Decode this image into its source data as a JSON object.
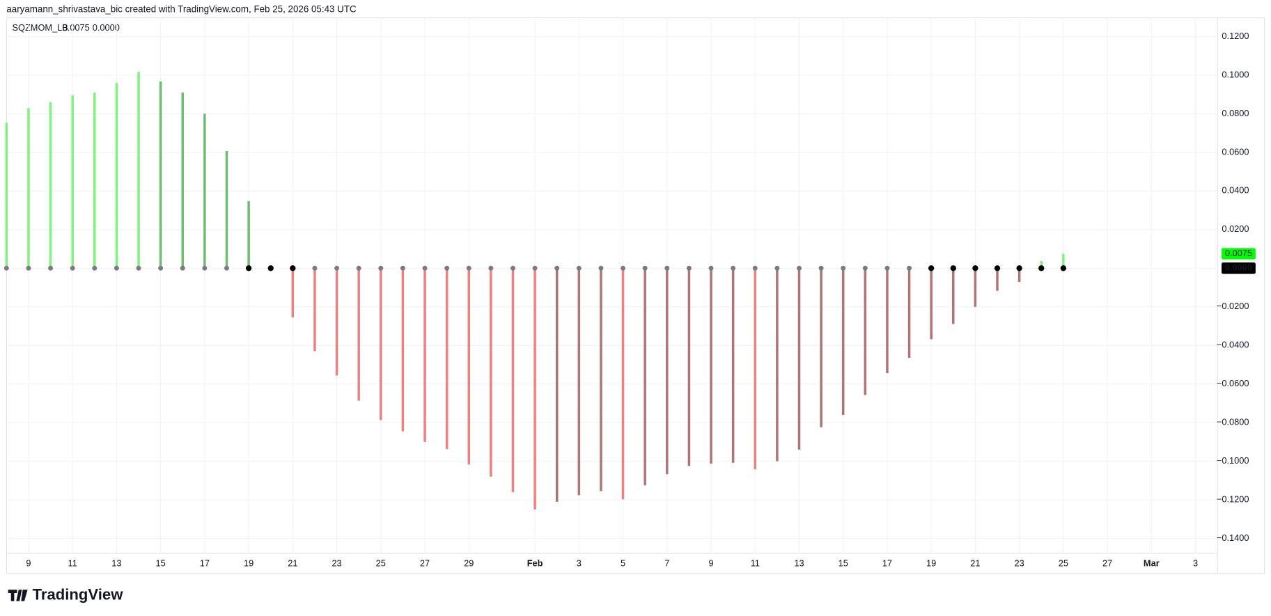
{
  "header": {
    "title": "aaryamann_shrivastava_bic created with TradingView.com, Feb 25, 2026 05:43 UTC"
  },
  "footer": {
    "logo": "TradingView"
  },
  "chart_data": {
    "type": "bar",
    "title": "SQZMOM_LB",
    "squeeze_label": "0.0000",
    "x": [
      "2026-01-08",
      "2026-01-09",
      "2026-01-10",
      "2026-01-11",
      "2026-01-12",
      "2026-01-13",
      "2026-01-14",
      "2026-01-15",
      "2026-01-16",
      "2026-01-17",
      "2026-01-18",
      "2026-01-19",
      "2026-01-20",
      "2026-01-21",
      "2026-01-22",
      "2026-01-23",
      "2026-01-24",
      "2026-01-25",
      "2026-01-26",
      "2026-01-27",
      "2026-01-28",
      "2026-01-29",
      "2026-01-30",
      "2026-01-31",
      "2026-02-01",
      "2026-02-02",
      "2026-02-03",
      "2026-02-04",
      "2026-02-05",
      "2026-02-06",
      "2026-02-07",
      "2026-02-08",
      "2026-02-09",
      "2026-02-10",
      "2026-02-11",
      "2026-02-12",
      "2026-02-13",
      "2026-02-14",
      "2026-02-15",
      "2026-02-16",
      "2026-02-17",
      "2026-02-18",
      "2026-02-19",
      "2026-02-20",
      "2026-02-21",
      "2026-02-22",
      "2026-02-23",
      "2026-02-24",
      "2026-02-25"
    ],
    "values": [
      0.0753,
      0.083,
      0.086,
      0.0895,
      0.091,
      0.096,
      0.1017,
      0.0967,
      0.091,
      0.08,
      0.0607,
      0.0347,
      0,
      -0.0255,
      -0.043,
      -0.0556,
      -0.0686,
      -0.0787,
      -0.0845,
      -0.09,
      -0.0937,
      -0.1017,
      -0.108,
      -0.116,
      -0.125,
      -0.121,
      -0.1176,
      -0.1155,
      -0.1197,
      -0.1125,
      -0.1067,
      -0.1025,
      -0.1013,
      -0.1008,
      -0.1042,
      -0.1,
      -0.094,
      -0.0824,
      -0.076,
      -0.0657,
      -0.0544,
      -0.0464,
      -0.0368,
      -0.0289,
      -0.02,
      -0.0117,
      -0.0071,
      0.0038,
      0.0075
    ],
    "bar_colors": [
      "#7ef47e",
      "#7ef47e",
      "#7ef47e",
      "#7ef47e",
      "#7ef47e",
      "#7ef47e",
      "#7ef47e",
      "#6dbd70",
      "#6dbd70",
      "#6dbd70",
      "#6dbd70",
      "#6dbd70",
      "#6dbd70",
      "#f08080",
      "#f08080",
      "#f08080",
      "#f08080",
      "#f08080",
      "#f08080",
      "#f08080",
      "#f08080",
      "#f08080",
      "#f08080",
      "#f08080",
      "#f08080",
      "#b07474",
      "#b07474",
      "#b07474",
      "#f08080",
      "#b07474",
      "#b07474",
      "#b07474",
      "#b07474",
      "#b07474",
      "#f08080",
      "#b07474",
      "#b07474",
      "#b07474",
      "#b07474",
      "#b07474",
      "#b07474",
      "#b07474",
      "#b07474",
      "#b07474",
      "#b07474",
      "#b07474",
      "#b07474",
      "#7ef47e",
      "#7ef47e"
    ],
    "dot_colors": [
      "#787b86",
      "#787b86",
      "#787b86",
      "#787b86",
      "#787b86",
      "#787b86",
      "#787b86",
      "#787b86",
      "#787b86",
      "#787b86",
      "#787b86",
      "#000000",
      "#000000",
      "#000000",
      "#787b86",
      "#787b86",
      "#787b86",
      "#787b86",
      "#787b86",
      "#787b86",
      "#787b86",
      "#787b86",
      "#787b86",
      "#787b86",
      "#787b86",
      "#787b86",
      "#787b86",
      "#787b86",
      "#787b86",
      "#787b86",
      "#787b86",
      "#787b86",
      "#787b86",
      "#787b86",
      "#787b86",
      "#787b86",
      "#787b86",
      "#787b86",
      "#787b86",
      "#787b86",
      "#787b86",
      "#787b86",
      "#000000",
      "#000000",
      "#000000",
      "#000000",
      "#000000",
      "#000000",
      "#000000"
    ],
    "value_color": "#00ff00",
    "squeeze_color": "#000000",
    "xlim": [
      "2026-01-08",
      "2026-03-04"
    ],
    "xticks": [
      {
        "value": "2026-01-09",
        "label": "9"
      },
      {
        "value": "2026-01-11",
        "label": "11"
      },
      {
        "value": "2026-01-13",
        "label": "13"
      },
      {
        "value": "2026-01-15",
        "label": "15"
      },
      {
        "value": "2026-01-17",
        "label": "17"
      },
      {
        "value": "2026-01-19",
        "label": "19"
      },
      {
        "value": "2026-01-21",
        "label": "21"
      },
      {
        "value": "2026-01-23",
        "label": "23"
      },
      {
        "value": "2026-01-25",
        "label": "25"
      },
      {
        "value": "2026-01-27",
        "label": "27"
      },
      {
        "value": "2026-01-29",
        "label": "29"
      },
      {
        "value": "2026-02-01",
        "label": "Feb"
      },
      {
        "value": "2026-02-03",
        "label": "3"
      },
      {
        "value": "2026-02-05",
        "label": "5"
      },
      {
        "value": "2026-02-07",
        "label": "7"
      },
      {
        "value": "2026-02-09",
        "label": "9"
      },
      {
        "value": "2026-02-11",
        "label": "11"
      },
      {
        "value": "2026-02-13",
        "label": "13"
      },
      {
        "value": "2026-02-15",
        "label": "15"
      },
      {
        "value": "2026-02-17",
        "label": "17"
      },
      {
        "value": "2026-02-19",
        "label": "19"
      },
      {
        "value": "2026-02-21",
        "label": "21"
      },
      {
        "value": "2026-02-23",
        "label": "23"
      },
      {
        "value": "2026-02-25",
        "label": "25"
      },
      {
        "value": "2026-02-27",
        "label": "27"
      },
      {
        "value": "2026-03-01",
        "label": "Mar"
      },
      {
        "value": "2026-03-03",
        "label": "3"
      }
    ],
    "ylim": [
      -0.1477,
      0.1297
    ],
    "yticks": [
      {
        "value": 0.12,
        "label": "0.1200"
      },
      {
        "value": 0.1,
        "label": "0.1000"
      },
      {
        "value": 0.08,
        "label": "0.0800"
      },
      {
        "value": 0.06,
        "label": "0.0600"
      },
      {
        "value": 0.04,
        "label": "0.0400"
      },
      {
        "value": 0.02,
        "label": "0.0200"
      },
      {
        "value": 0,
        "label": "0.0000"
      },
      {
        "value": -0.02,
        "label": "−0.0200"
      },
      {
        "value": -0.04,
        "label": "−0.0400"
      },
      {
        "value": -0.06,
        "label": "−0.0600"
      },
      {
        "value": -0.08,
        "label": "−0.0800"
      },
      {
        "value": -0.1,
        "label": "−0.1000"
      },
      {
        "value": -0.12,
        "label": "−0.1200"
      },
      {
        "value": -0.14,
        "label": "−0.1400"
      }
    ],
    "grid": true
  }
}
